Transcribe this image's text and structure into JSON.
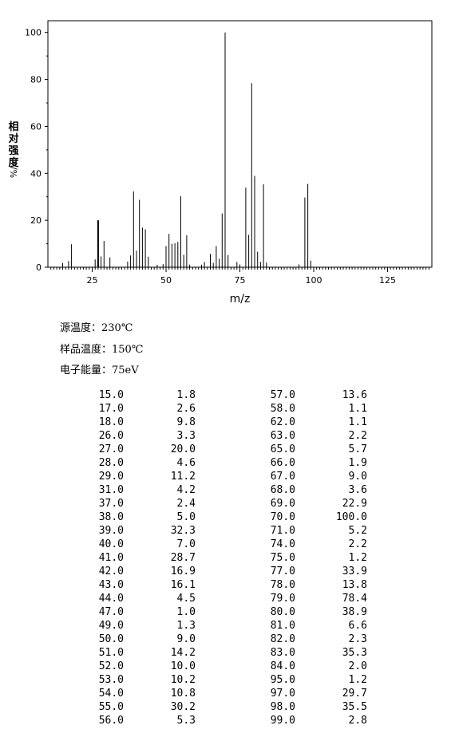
{
  "chart_data": {
    "type": "bar",
    "xlabel": "m/z",
    "ylabel_cjk": [
      "相",
      "对",
      "强",
      "度"
    ],
    "ylabel_unit": "%/",
    "xlim": [
      10,
      140
    ],
    "ylim": [
      0,
      105
    ],
    "x_ticks": [
      25,
      50,
      75,
      100,
      125
    ],
    "y_ticks": [
      0,
      20,
      40,
      60,
      80,
      100
    ],
    "peaks": [
      [
        15.0,
        1.8
      ],
      [
        17.0,
        2.6
      ],
      [
        18.0,
        9.8
      ],
      [
        26.0,
        3.3
      ],
      [
        27.0,
        20.0
      ],
      [
        28.0,
        4.6
      ],
      [
        29.0,
        11.2
      ],
      [
        31.0,
        4.2
      ],
      [
        37.0,
        2.4
      ],
      [
        38.0,
        5.0
      ],
      [
        39.0,
        32.3
      ],
      [
        40.0,
        7.0
      ],
      [
        41.0,
        28.7
      ],
      [
        42.0,
        16.9
      ],
      [
        43.0,
        16.1
      ],
      [
        44.0,
        4.5
      ],
      [
        47.0,
        1.0
      ],
      [
        49.0,
        1.3
      ],
      [
        50.0,
        9.0
      ],
      [
        51.0,
        14.2
      ],
      [
        52.0,
        10.0
      ],
      [
        53.0,
        10.2
      ],
      [
        54.0,
        10.8
      ],
      [
        55.0,
        30.2
      ],
      [
        56.0,
        5.3
      ],
      [
        57.0,
        13.6
      ],
      [
        58.0,
        1.1
      ],
      [
        62.0,
        1.1
      ],
      [
        63.0,
        2.2
      ],
      [
        65.0,
        5.7
      ],
      [
        66.0,
        1.9
      ],
      [
        67.0,
        9.0
      ],
      [
        68.0,
        3.6
      ],
      [
        69.0,
        22.9
      ],
      [
        70.0,
        100.0
      ],
      [
        71.0,
        5.2
      ],
      [
        74.0,
        2.2
      ],
      [
        75.0,
        1.2
      ],
      [
        77.0,
        33.9
      ],
      [
        78.0,
        13.8
      ],
      [
        79.0,
        78.4
      ],
      [
        80.0,
        38.9
      ],
      [
        81.0,
        6.6
      ],
      [
        82.0,
        2.3
      ],
      [
        83.0,
        35.3
      ],
      [
        84.0,
        2.0
      ],
      [
        95.0,
        1.2
      ],
      [
        97.0,
        29.7
      ],
      [
        98.0,
        35.5
      ],
      [
        99.0,
        2.8
      ]
    ]
  },
  "conditions": [
    {
      "label": "源温度：",
      "value": "230℃"
    },
    {
      "label": "样品温度：",
      "value": "150℃"
    },
    {
      "label": "电子能量：",
      "value": "75eV"
    }
  ],
  "table": {
    "left": [
      [
        "15.0",
        "1.8"
      ],
      [
        "17.0",
        "2.6"
      ],
      [
        "18.0",
        "9.8"
      ],
      [
        "26.0",
        "3.3"
      ],
      [
        "27.0",
        "20.0"
      ],
      [
        "28.0",
        "4.6"
      ],
      [
        "29.0",
        "11.2"
      ],
      [
        "31.0",
        "4.2"
      ],
      [
        "37.0",
        "2.4"
      ],
      [
        "38.0",
        "5.0"
      ],
      [
        "39.0",
        "32.3"
      ],
      [
        "40.0",
        "7.0"
      ],
      [
        "41.0",
        "28.7"
      ],
      [
        "42.0",
        "16.9"
      ],
      [
        "43.0",
        "16.1"
      ],
      [
        "44.0",
        "4.5"
      ],
      [
        "47.0",
        "1.0"
      ],
      [
        "49.0",
        "1.3"
      ],
      [
        "50.0",
        "9.0"
      ],
      [
        "51.0",
        "14.2"
      ],
      [
        "52.0",
        "10.0"
      ],
      [
        "53.0",
        "10.2"
      ],
      [
        "54.0",
        "10.8"
      ],
      [
        "55.0",
        "30.2"
      ],
      [
        "56.0",
        "5.3"
      ]
    ],
    "right": [
      [
        "57.0",
        "13.6"
      ],
      [
        "58.0",
        "1.1"
      ],
      [
        "62.0",
        "1.1"
      ],
      [
        "63.0",
        "2.2"
      ],
      [
        "65.0",
        "5.7"
      ],
      [
        "66.0",
        "1.9"
      ],
      [
        "67.0",
        "9.0"
      ],
      [
        "68.0",
        "3.6"
      ],
      [
        "69.0",
        "22.9"
      ],
      [
        "70.0",
        "100.0"
      ],
      [
        "71.0",
        "5.2"
      ],
      [
        "74.0",
        "2.2"
      ],
      [
        "75.0",
        "1.2"
      ],
      [
        "77.0",
        "33.9"
      ],
      [
        "78.0",
        "13.8"
      ],
      [
        "79.0",
        "78.4"
      ],
      [
        "80.0",
        "38.9"
      ],
      [
        "81.0",
        "6.6"
      ],
      [
        "82.0",
        "2.3"
      ],
      [
        "83.0",
        "35.3"
      ],
      [
        "84.0",
        "2.0"
      ],
      [
        "95.0",
        "1.2"
      ],
      [
        "97.0",
        "29.7"
      ],
      [
        "98.0",
        "35.5"
      ],
      [
        "99.0",
        "2.8"
      ]
    ]
  }
}
